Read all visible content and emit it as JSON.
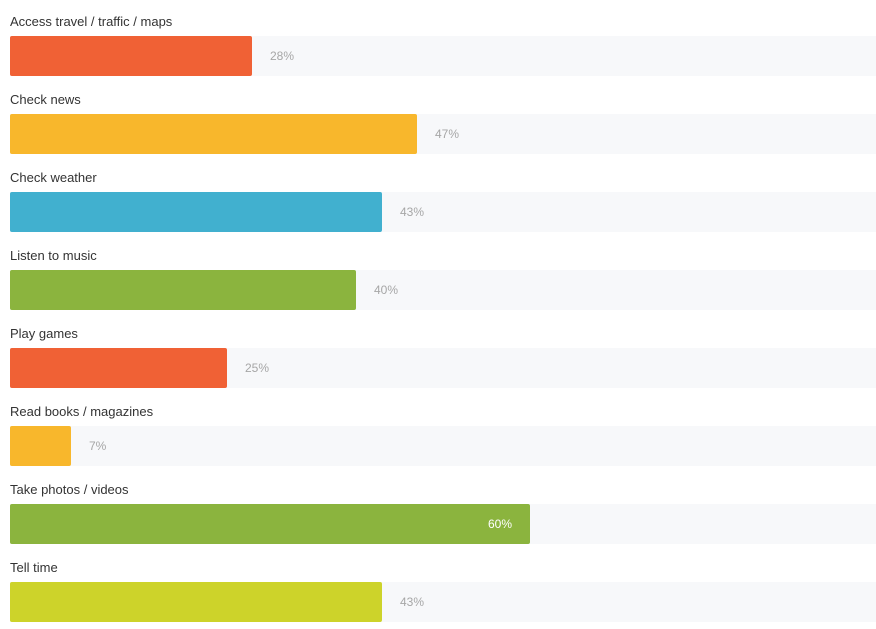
{
  "chart_data": {
    "type": "bar",
    "orientation": "horizontal",
    "xlim": [
      0,
      100
    ],
    "value_format": "percent",
    "categories": [
      "Access travel / traffic / maps",
      "Check news",
      "Check weather",
      "Listen to music",
      "Play games",
      "Read books / magazines",
      "Take photos / videos",
      "Tell time"
    ],
    "values": [
      28,
      47,
      43,
      40,
      25,
      7,
      60,
      43
    ],
    "value_labels": [
      "28%",
      "47%",
      "43%",
      "40%",
      "25%",
      "7%",
      "60%",
      "43%"
    ],
    "colors": [
      "#f06135",
      "#f8b72c",
      "#41b0cf",
      "#8bb43e",
      "#f06135",
      "#f8b72c",
      "#8bb43e",
      "#cdd32a"
    ],
    "label_colors": {
      "outside": "#a6a6a6",
      "inside": "#ffffff"
    },
    "track_color": "#f7f8fa",
    "grid": false,
    "legend": "none"
  }
}
